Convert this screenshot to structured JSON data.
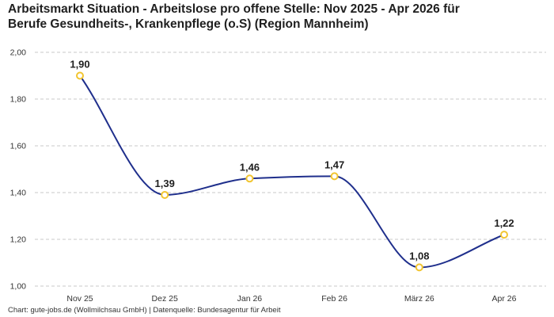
{
  "chart_data": {
    "type": "line",
    "title_line1": "Arbeitsmarkt Situation - Arbeitslose pro offene Stelle: Nov 2025 - Apr 2026 für",
    "title_line2": "Berufe Gesundheits-, Krankenpflege (o.S) (Region Mannheim)",
    "xlabel": "",
    "ylabel": "",
    "categories": [
      "Nov 25",
      "Dez 25",
      "Jan 26",
      "Feb 26",
      "März 26",
      "Apr 26"
    ],
    "values": [
      1.9,
      1.39,
      1.46,
      1.47,
      1.08,
      1.22
    ],
    "data_labels": [
      "1,90",
      "1,39",
      "1,46",
      "1,47",
      "1,08",
      "1,22"
    ],
    "ylim": [
      1.0,
      2.0
    ],
    "y_ticks": [
      1.0,
      1.2,
      1.4,
      1.6,
      1.8,
      2.0
    ],
    "y_tick_labels": [
      "1,00",
      "1,20",
      "1,40",
      "1,60",
      "1,80",
      "2,00"
    ],
    "grid": "horizontal dashed",
    "line_color": "#1f2f8c",
    "marker_color": "#f2c530",
    "curve": "smooth"
  },
  "footer": {
    "text": "Chart: gute-jobs.de (Wollmilchsau GmbH) | Datenquelle: Bundesagentur für Arbeit"
  }
}
